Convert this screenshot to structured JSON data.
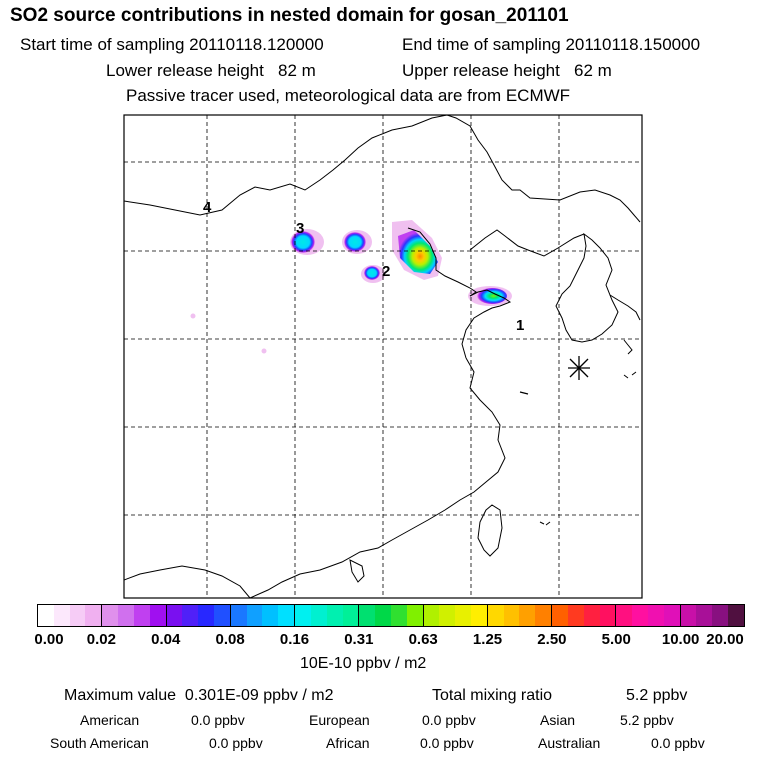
{
  "header": {
    "title": "SO2 source contributions in nested domain for gosan_201101",
    "start_label": "Start time of sampling 20110118.120000",
    "end_label": "End time of sampling 20110118.150000",
    "lower_label": "Lower release height   82 m",
    "upper_label": "Upper release height   62 m",
    "tracer_note": "Passive tracer used, meteorological data are from ECMWF"
  },
  "map": {
    "source_labels": [
      {
        "id": "1",
        "text": "1"
      },
      {
        "id": "2",
        "text": "2"
      },
      {
        "id": "3",
        "text": "3"
      },
      {
        "id": "4",
        "text": "4"
      }
    ],
    "receptor_marker": "asterisk-marker"
  },
  "colorbar": {
    "tick_labels": [
      "0.00",
      "0.02",
      "0.04",
      "0.08",
      "0.16",
      "0.31",
      "0.63",
      "1.25",
      "2.50",
      "5.00",
      "10.00",
      "20.00"
    ],
    "unit": "10E-10 ppbv / m2",
    "colors": [
      [
        "#ffffff",
        "#fce8fc",
        "#f6ccf6",
        "#f0b0f0"
      ],
      [
        "#e090ec",
        "#d070ee",
        "#c040f0",
        "#a010f0"
      ],
      [
        "#7a10f0",
        "#5020f8",
        "#2828ff",
        "#2050ff"
      ],
      [
        "#1a78ff",
        "#10a0ff",
        "#00c0ff",
        "#00e0ff"
      ],
      [
        "#00f0f0",
        "#00f0d0",
        "#00f0b0",
        "#00f098"
      ],
      [
        "#00e070",
        "#00d848",
        "#30e030",
        "#80f000"
      ],
      [
        "#b0f000",
        "#d0f000",
        "#e8f000",
        "#ffee00"
      ],
      [
        "#ffd800",
        "#ffc000",
        "#ffa000",
        "#ff8000"
      ],
      [
        "#ff6000",
        "#ff3a20",
        "#ff2040",
        "#ff1060"
      ],
      [
        "#ff1080",
        "#ff10a0",
        "#f010b0",
        "#e010b8"
      ],
      [
        "#c810a8",
        "#a81098",
        "#881080",
        "#501040"
      ]
    ]
  },
  "stats": {
    "max_label": "Maximum value  0.301E-09 ppbv / m2",
    "total_label": "Total mixing ratio",
    "total_value": "5.2 ppbv"
  },
  "regions": [
    {
      "name": "American",
      "value": "0.0 ppbv"
    },
    {
      "name": "European",
      "value": "0.0 ppbv"
    },
    {
      "name": "Asian",
      "value": "5.2 ppbv"
    },
    {
      "name": "South American",
      "value": "0.0 ppbv"
    },
    {
      "name": "African",
      "value": "0.0 ppbv"
    },
    {
      "name": "Australian",
      "value": "0.0 ppbv"
    }
  ]
}
